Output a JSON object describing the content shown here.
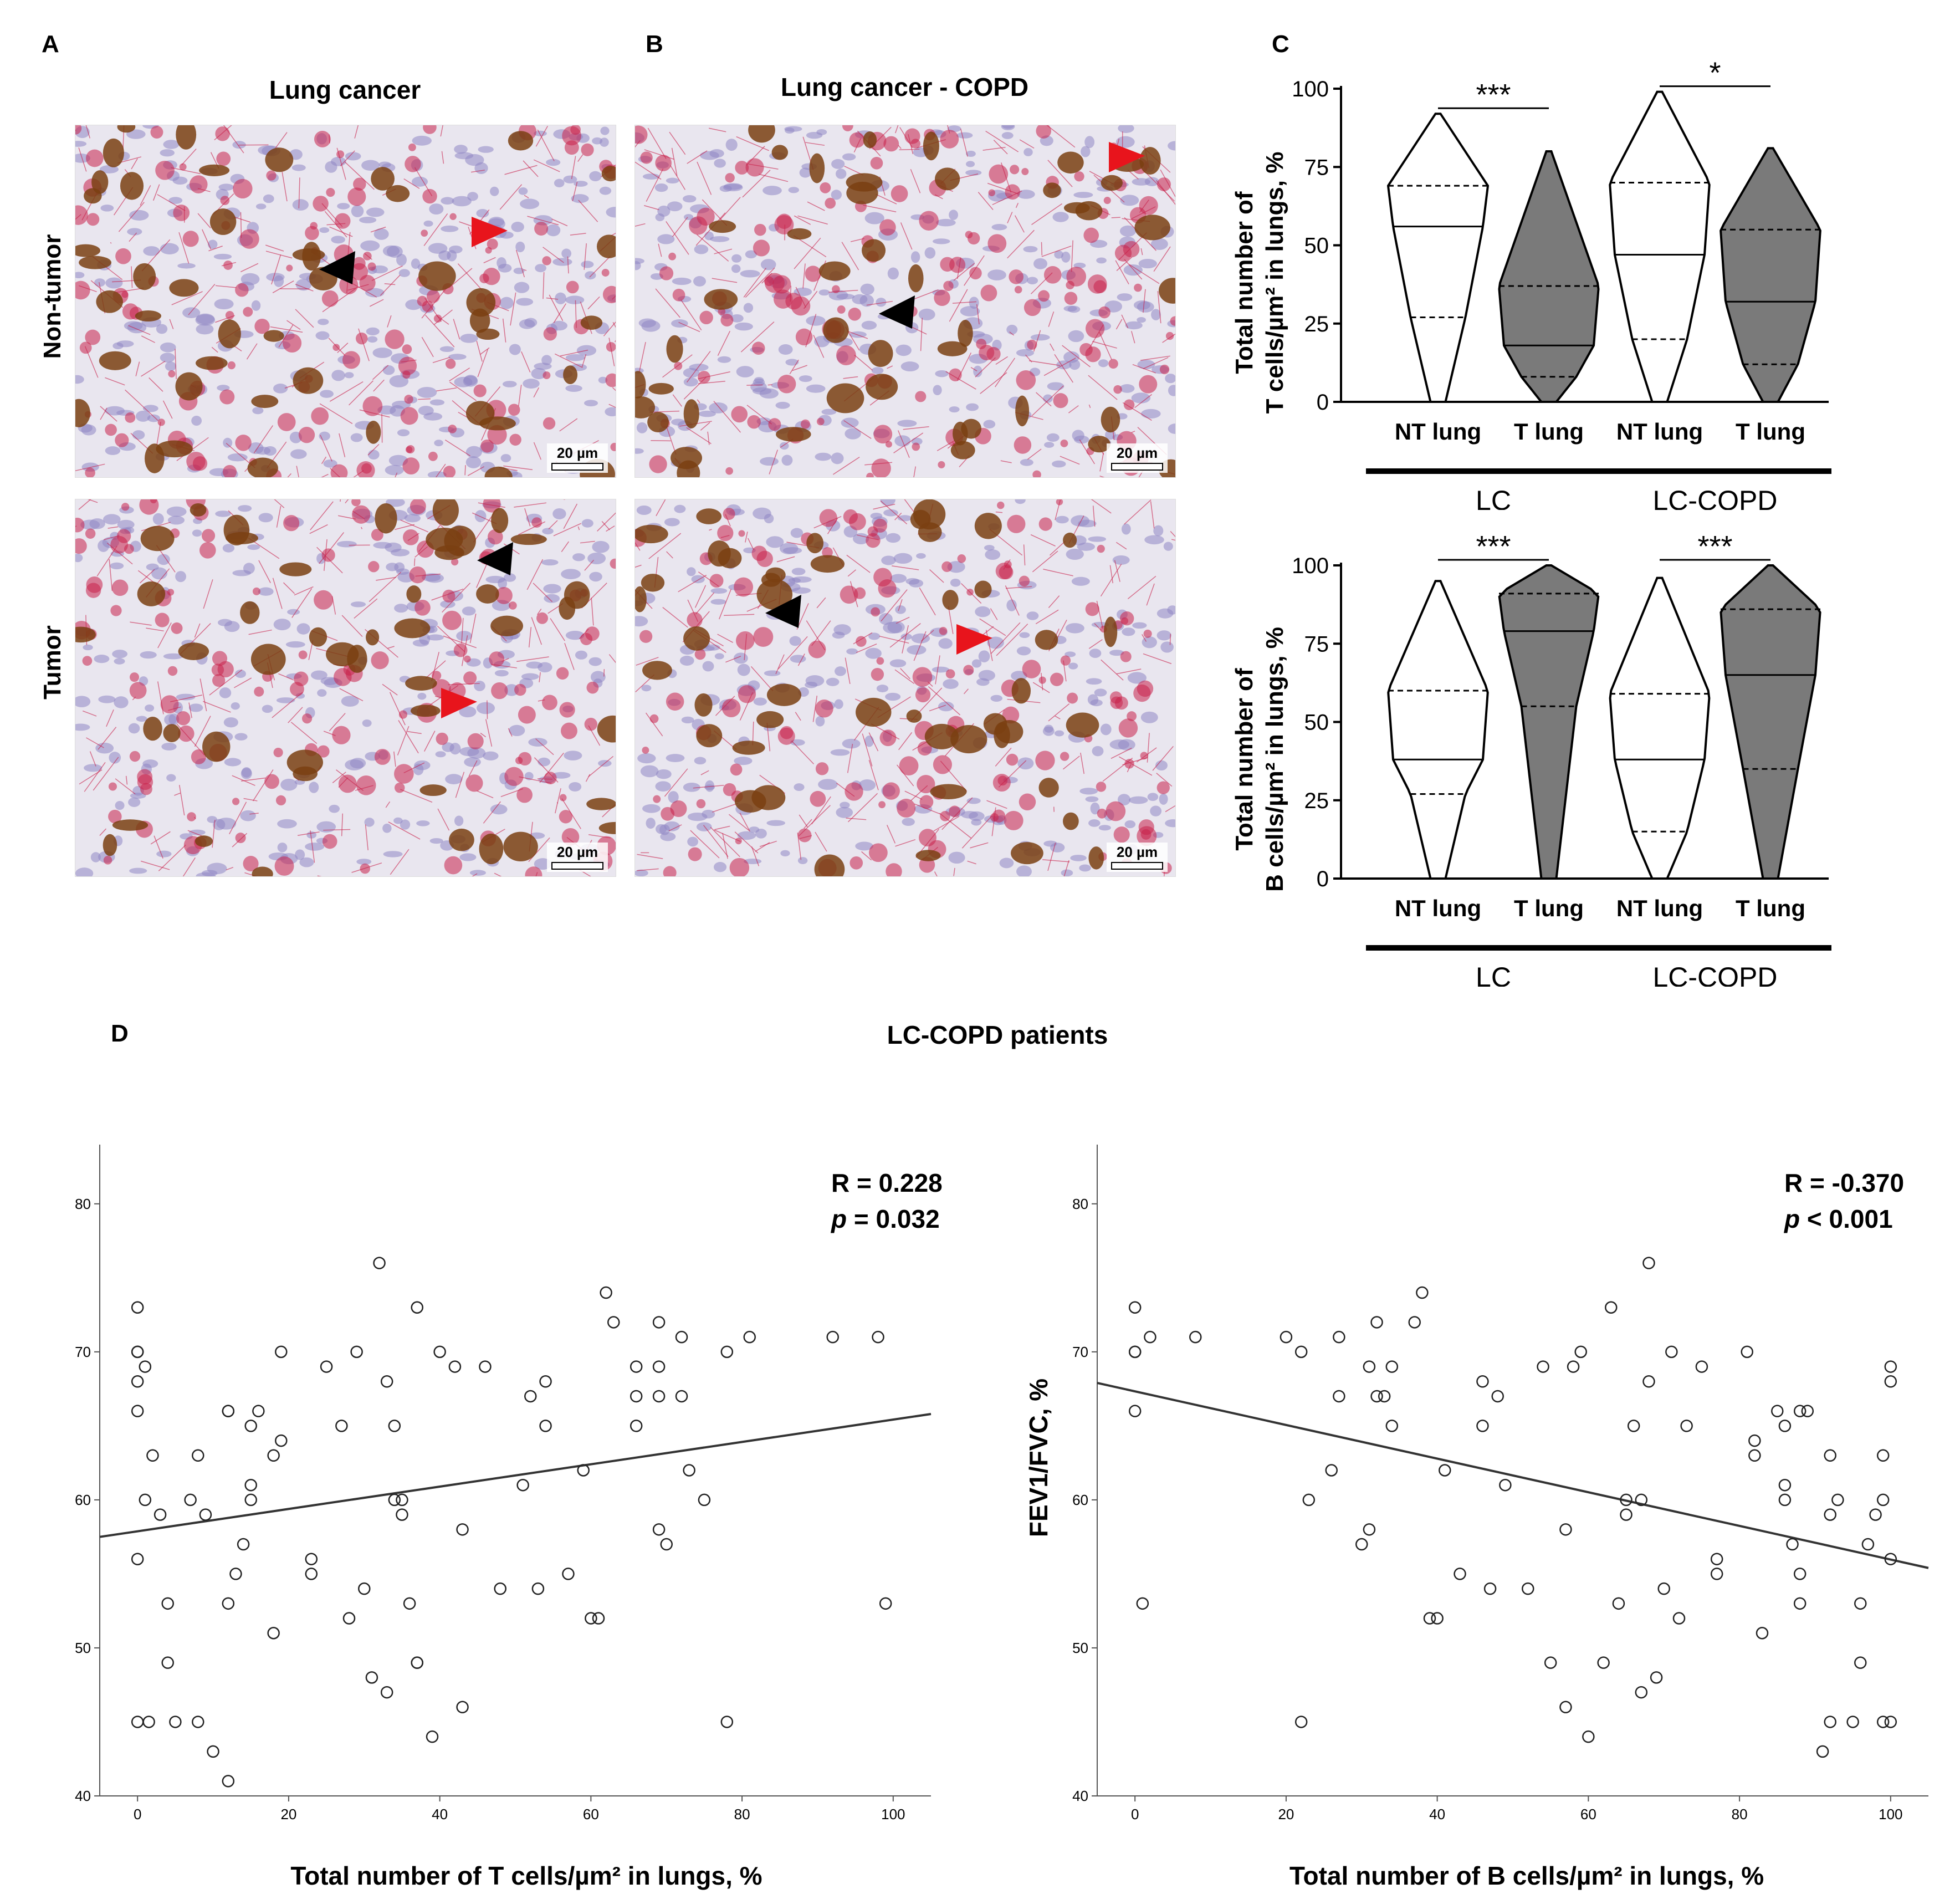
{
  "panel_labels": {
    "a": "A",
    "b": "B",
    "c": "C",
    "d": "D"
  },
  "micrographs": {
    "col_a_title": "Lung cancer",
    "col_b_title": "Lung cancer - COPD",
    "row_top_label": "Non-tumor",
    "row_bottom_label": "Tumor",
    "scale_text": "20 µm",
    "colors": {
      "background": "#e9e6ef",
      "nuclei": "#8f86c4",
      "t_cells": "#c8204a",
      "b_cells": "#7a3f12",
      "arrow_red": "#e8141c",
      "arrow_black": "#000000"
    }
  },
  "violin": {
    "x_labels": [
      "NT lung",
      "T lung",
      "NT lung",
      "T lung"
    ],
    "group_labels": [
      "LC",
      "LC-COPD"
    ],
    "fill_colors": [
      "#ffffff",
      "#7a7a7a",
      "#ffffff",
      "#7a7a7a"
    ],
    "top": {
      "ylabel_line1": "Total number of",
      "ylabel_line2": "T cells/µm² in lungs, %",
      "yticks": [
        "100",
        "75",
        "50",
        "25",
        "0"
      ],
      "sig": [
        "***",
        "*"
      ]
    },
    "bottom": {
      "ylabel_line1": "Total number of",
      "ylabel_line2": "B cells/µm² in lungs, %",
      "yticks": [
        "100",
        "75",
        "50",
        "25",
        "0"
      ],
      "sig": [
        "***",
        "***"
      ]
    }
  },
  "scatter_section": {
    "title": "LC-COPD patients",
    "left": {
      "xlabel": "Total number of T cells/µm² in lungs, %",
      "ylabel": "",
      "r_text": "R = 0.228",
      "p_label": "p",
      "p_text": " = 0.032",
      "xticks": [
        "0",
        "20",
        "40",
        "60",
        "80",
        "100"
      ],
      "yticks": [
        "80",
        "70",
        "60",
        "50",
        "40"
      ]
    },
    "right": {
      "xlabel": "Total number of B cells/µm² in lungs, %",
      "ylabel": "FEV1/FVC, %",
      "r_text": "R = -0.370",
      "p_label": "p",
      "p_text": " < 0.001",
      "xticks": [
        "0",
        "20",
        "40",
        "60",
        "80",
        "100"
      ],
      "yticks": [
        "80",
        "70",
        "60",
        "50",
        "40"
      ]
    }
  },
  "chart_data": [
    {
      "type": "violin",
      "title": "",
      "ylabel": "Total number of T cells/µm² in lungs, %",
      "ylim": [
        0,
        100
      ],
      "categories": [
        "LC NT lung",
        "LC T lung",
        "LC-COPD NT lung",
        "LC-COPD T lung"
      ],
      "series": [
        {
          "name": "LC NT lung",
          "min": 0,
          "max": 92,
          "q1": 27,
          "median": 56,
          "q3": 69
        },
        {
          "name": "LC T lung",
          "min": 0,
          "max": 80,
          "q1": 8,
          "median": 18,
          "q3": 37
        },
        {
          "name": "LC-COPD NT lung",
          "min": 0,
          "max": 99,
          "q1": 20,
          "median": 47,
          "q3": 70
        },
        {
          "name": "LC-COPD T lung",
          "min": 0,
          "max": 81,
          "q1": 12,
          "median": 32,
          "q3": 55
        }
      ],
      "annotations": [
        {
          "between": [
            "LC NT lung",
            "LC T lung"
          ],
          "text": "***"
        },
        {
          "between": [
            "LC-COPD NT lung",
            "LC-COPD T lung"
          ],
          "text": "*"
        }
      ]
    },
    {
      "type": "violin",
      "title": "",
      "ylabel": "Total number of B cells/µm² in lungs, %",
      "ylim": [
        0,
        100
      ],
      "categories": [
        "LC NT lung",
        "LC T lung",
        "LC-COPD NT lung",
        "LC-COPD T lung"
      ],
      "series": [
        {
          "name": "LC NT lung",
          "min": 0,
          "max": 95,
          "q1": 27,
          "median": 38,
          "q3": 60
        },
        {
          "name": "LC T lung",
          "min": 0,
          "max": 100,
          "q1": 55,
          "median": 79,
          "q3": 91
        },
        {
          "name": "LC-COPD NT lung",
          "min": 0,
          "max": 96,
          "q1": 15,
          "median": 38,
          "q3": 59
        },
        {
          "name": "LC-COPD T lung",
          "min": 0,
          "max": 100,
          "q1": 35,
          "median": 65,
          "q3": 86
        }
      ],
      "annotations": [
        {
          "between": [
            "LC NT lung",
            "LC T lung"
          ],
          "text": "***"
        },
        {
          "between": [
            "LC-COPD NT lung",
            "LC-COPD T lung"
          ],
          "text": "***"
        }
      ]
    },
    {
      "type": "scatter",
      "title": "LC-COPD patients",
      "xlabel": "Total number of T cells/µm² in lungs, %",
      "ylabel": "",
      "xlim": [
        -5,
        105
      ],
      "ylim": [
        40,
        84
      ],
      "annotations": [
        "R = 0.228",
        "p = 0.032"
      ],
      "regression": {
        "x": [
          -5,
          105
        ],
        "y": [
          57.5,
          65.8
        ]
      },
      "points": [
        [
          0,
          73
        ],
        [
          0,
          70
        ],
        [
          0,
          70
        ],
        [
          0,
          68
        ],
        [
          0,
          66
        ],
        [
          0,
          56
        ],
        [
          0,
          45
        ],
        [
          1,
          69
        ],
        [
          1,
          60
        ],
        [
          1.5,
          45
        ],
        [
          2,
          63
        ],
        [
          3,
          59
        ],
        [
          4,
          53
        ],
        [
          4,
          49
        ],
        [
          5,
          45
        ],
        [
          7,
          60
        ],
        [
          8,
          63
        ],
        [
          8,
          45
        ],
        [
          9,
          59
        ],
        [
          10,
          43
        ],
        [
          12,
          66
        ],
        [
          12,
          66
        ],
        [
          12,
          53
        ],
        [
          12,
          41
        ],
        [
          13,
          55
        ],
        [
          14,
          57
        ],
        [
          15,
          65
        ],
        [
          15,
          61
        ],
        [
          15,
          60
        ],
        [
          16,
          66
        ],
        [
          18,
          63
        ],
        [
          18,
          51
        ],
        [
          19,
          64
        ],
        [
          19,
          70
        ],
        [
          23,
          56
        ],
        [
          23,
          55
        ],
        [
          25,
          69
        ],
        [
          27,
          65
        ],
        [
          28,
          52
        ],
        [
          29,
          70
        ],
        [
          30,
          54
        ],
        [
          31,
          48
        ],
        [
          32,
          76
        ],
        [
          33,
          68
        ],
        [
          33,
          47
        ],
        [
          34,
          60
        ],
        [
          34,
          65
        ],
        [
          35,
          59
        ],
        [
          35,
          60
        ],
        [
          36,
          53
        ],
        [
          37,
          73
        ],
        [
          37,
          49
        ],
        [
          37,
          49
        ],
        [
          39,
          44
        ],
        [
          40,
          70
        ],
        [
          42,
          69
        ],
        [
          43,
          58
        ],
        [
          43,
          46
        ],
        [
          46,
          69
        ],
        [
          48,
          54
        ],
        [
          51,
          61
        ],
        [
          52,
          67
        ],
        [
          53,
          54
        ],
        [
          54,
          65
        ],
        [
          54,
          68
        ],
        [
          57,
          55
        ],
        [
          59,
          62
        ],
        [
          60,
          52
        ],
        [
          61,
          52
        ],
        [
          62,
          74
        ],
        [
          63,
          72
        ],
        [
          66,
          69
        ],
        [
          66,
          67
        ],
        [
          66,
          65
        ],
        [
          69,
          72
        ],
        [
          69,
          67
        ],
        [
          69,
          58
        ],
        [
          69,
          69
        ],
        [
          70,
          57
        ],
        [
          72,
          71
        ],
        [
          72,
          67
        ],
        [
          73,
          62
        ],
        [
          75,
          60
        ],
        [
          78,
          70
        ],
        [
          78,
          45
        ],
        [
          81,
          71
        ],
        [
          92,
          71
        ],
        [
          98,
          71
        ],
        [
          99,
          53
        ]
      ]
    },
    {
      "type": "scatter",
      "title": "LC-COPD patients",
      "xlabel": "Total number of B cells/µm² in lungs, %",
      "ylabel": "FEV1/FVC, %",
      "xlim": [
        -5,
        105
      ],
      "ylim": [
        40,
        84
      ],
      "annotations": [
        "R = -0.370",
        "p < 0.001"
      ],
      "regression": {
        "x": [
          -5,
          105
        ],
        "y": [
          67.9,
          55.4
        ]
      },
      "points": [
        [
          0,
          73
        ],
        [
          0,
          70
        ],
        [
          0,
          70
        ],
        [
          0,
          66
        ],
        [
          1,
          53
        ],
        [
          2,
          71
        ],
        [
          8,
          71
        ],
        [
          20,
          71
        ],
        [
          22,
          70
        ],
        [
          22,
          45
        ],
        [
          23,
          60
        ],
        [
          26,
          62
        ],
        [
          27,
          67
        ],
        [
          27,
          71
        ],
        [
          30,
          57
        ],
        [
          31,
          69
        ],
        [
          31,
          58
        ],
        [
          32,
          72
        ],
        [
          32,
          67
        ],
        [
          33,
          67
        ],
        [
          34,
          65
        ],
        [
          34,
          69
        ],
        [
          37,
          72
        ],
        [
          38,
          74
        ],
        [
          39,
          52
        ],
        [
          40,
          52
        ],
        [
          41,
          62
        ],
        [
          43,
          55
        ],
        [
          46,
          68
        ],
        [
          46,
          65
        ],
        [
          47,
          54
        ],
        [
          48,
          67
        ],
        [
          49,
          61
        ],
        [
          52,
          54
        ],
        [
          54,
          69
        ],
        [
          55,
          49
        ],
        [
          57,
          58
        ],
        [
          57,
          46
        ],
        [
          58,
          69
        ],
        [
          59,
          70
        ],
        [
          60,
          44
        ],
        [
          62,
          49
        ],
        [
          63,
          73
        ],
        [
          64,
          53
        ],
        [
          65,
          60
        ],
        [
          65,
          59
        ],
        [
          66,
          65
        ],
        [
          67,
          60
        ],
        [
          67,
          47
        ],
        [
          68,
          68
        ],
        [
          68,
          76
        ],
        [
          69,
          48
        ],
        [
          70,
          54
        ],
        [
          71,
          70
        ],
        [
          72,
          52
        ],
        [
          73,
          65
        ],
        [
          75,
          69
        ],
        [
          77,
          55
        ],
        [
          77,
          56
        ],
        [
          81,
          70
        ],
        [
          82,
          64
        ],
        [
          82,
          63
        ],
        [
          83,
          51
        ],
        [
          85,
          66
        ],
        [
          86,
          60
        ],
        [
          86,
          61
        ],
        [
          86,
          65
        ],
        [
          87,
          57
        ],
        [
          88,
          55
        ],
        [
          88,
          53
        ],
        [
          88,
          66
        ],
        [
          89,
          66
        ],
        [
          91,
          43
        ],
        [
          92,
          59
        ],
        [
          92,
          45
        ],
        [
          92,
          63
        ],
        [
          93,
          60
        ],
        [
          95,
          45
        ],
        [
          96,
          53
        ],
        [
          96,
          49
        ],
        [
          97,
          57
        ],
        [
          98,
          59
        ],
        [
          99,
          63
        ],
        [
          99,
          45
        ],
        [
          99,
          60
        ],
        [
          100,
          69
        ],
        [
          100,
          68
        ],
        [
          100,
          45
        ],
        [
          100,
          56
        ]
      ]
    }
  ]
}
